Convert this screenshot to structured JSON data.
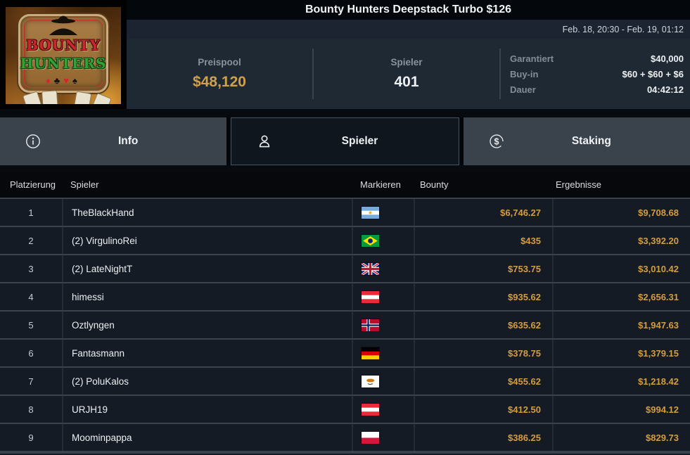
{
  "header": {
    "title": "Bounty Hunters Deepstack Turbo $126",
    "date_range": "Feb. 18, 20:30 - Feb. 19, 01:12",
    "logo": {
      "line1": "BOUNTY",
      "line2": "HUNTERS",
      "suits": [
        "♦",
        "♣",
        "♥",
        "♠"
      ]
    },
    "stats": {
      "prizepool": {
        "label": "Preispool",
        "value": "$48,120"
      },
      "players": {
        "label": "Spieler",
        "value": "401"
      },
      "details": [
        {
          "label": "Garantiert",
          "value": "$40,000"
        },
        {
          "label": "Buy-in",
          "value": "$60 + $60 + $6"
        },
        {
          "label": "Dauer",
          "value": "04:42:12"
        }
      ]
    }
  },
  "tabs": [
    {
      "label": "Info",
      "active": false
    },
    {
      "label": "Spieler",
      "active": true
    },
    {
      "label": "Staking",
      "active": false
    }
  ],
  "table": {
    "columns": [
      "Platzierung",
      "Spieler",
      "Markieren",
      "Bounty",
      "Ergebnisse"
    ],
    "rows": [
      {
        "rank": "1",
        "player": "TheBlackHand",
        "country": "argentina",
        "bounty": "$6,746.27",
        "result": "$9,708.68"
      },
      {
        "rank": "2",
        "player": "(2) VirgulinoRei",
        "country": "brazil",
        "bounty": "$435",
        "result": "$3,392.20"
      },
      {
        "rank": "3",
        "player": "(2) LateNightT",
        "country": "united-kingdom",
        "bounty": "$753.75",
        "result": "$3,010.42"
      },
      {
        "rank": "4",
        "player": "himessi",
        "country": "austria",
        "bounty": "$935.62",
        "result": "$2,656.31"
      },
      {
        "rank": "5",
        "player": "Oztlyngen",
        "country": "norway",
        "bounty": "$635.62",
        "result": "$1,947.63"
      },
      {
        "rank": "6",
        "player": "Fantasmann",
        "country": "germany",
        "bounty": "$378.75",
        "result": "$1,379.15"
      },
      {
        "rank": "7",
        "player": "(2) PoluKalos",
        "country": "cyprus",
        "bounty": "$455.62",
        "result": "$1,218.42"
      },
      {
        "rank": "8",
        "player": "URJH19",
        "country": "austria",
        "bounty": "$412.50",
        "result": "$994.12"
      },
      {
        "rank": "9",
        "player": "Moominpappa",
        "country": "poland",
        "bounty": "$386.25",
        "result": "$829.73"
      }
    ]
  },
  "colors": {
    "accent_gold": "#d2a04b",
    "stats_bg": "#1f2933",
    "tab_inactive_bg": "#3a424c",
    "tab_active_bg": "#10161e",
    "row_bg": "#151b25",
    "row_separator": "#3a434d"
  }
}
